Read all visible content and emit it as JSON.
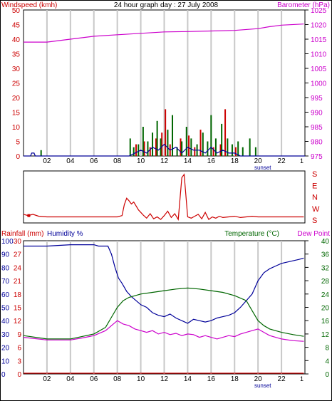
{
  "page": {
    "title": "24 hour graph day : 27 July 2008",
    "colors": {
      "red": "#cc0000",
      "green": "#006600",
      "magenta": "#cc00cc",
      "blue": "#000099",
      "grid": "#c8c8c8",
      "frame": "#000000"
    }
  },
  "chart_data": [
    {
      "id": "wind",
      "type": "bar",
      "title": "24 hour graph day : 27 July 2008",
      "ylabel_left": "Windspeed (kmh)",
      "ylabel_right": "Barometer (hPa)",
      "x_ticks": [
        "02",
        "04",
        "06",
        "08",
        "10",
        "12",
        "14",
        "16",
        "18",
        "20",
        "22"
      ],
      "sunset_label": "sunset",
      "ylim_left": [
        0,
        50
      ],
      "yticks_left": [
        "0",
        "5",
        "10",
        "15",
        "20",
        "25",
        "30",
        "35",
        "40",
        "45",
        "50"
      ],
      "ylim_right": [
        975,
        1025
      ],
      "yticks_right": [
        "975",
        "980",
        "985",
        "990",
        "995",
        "1000",
        "1005",
        "1010",
        "1015",
        "1020",
        "1025"
      ],
      "grid": true,
      "series": [
        {
          "kind": "line",
          "axis": "right",
          "color": "#cc00cc",
          "points": [
            [
              0,
              1014
            ],
            [
              2,
              1014
            ],
            [
              4,
              1015
            ],
            [
              6,
              1016
            ],
            [
              8,
              1016.5
            ],
            [
              10,
              1017
            ],
            [
              12,
              1017.5
            ],
            [
              14,
              1017.6
            ],
            [
              16,
              1017.8
            ],
            [
              18,
              1018
            ],
            [
              20,
              1018.6
            ],
            [
              21,
              1019.3
            ],
            [
              22,
              1019.8
            ],
            [
              23.9,
              1020.2
            ]
          ]
        },
        {
          "kind": "bars",
          "axis": "left",
          "color": "#cc0000",
          "points": [
            [
              9.6,
              4
            ],
            [
              10.3,
              5
            ],
            [
              10.8,
              3
            ],
            [
              11.3,
              6
            ],
            [
              11.8,
              8
            ],
            [
              12.1,
              16
            ],
            [
              12.5,
              4
            ],
            [
              13.4,
              6
            ],
            [
              14.1,
              7
            ],
            [
              14.6,
              3
            ],
            [
              15.1,
              9
            ],
            [
              16.2,
              3
            ],
            [
              16.8,
              4
            ],
            [
              17.2,
              16
            ],
            [
              18.1,
              3
            ]
          ]
        },
        {
          "kind": "bars",
          "axis": "left",
          "color": "#006600",
          "points": [
            [
              1.5,
              2
            ],
            [
              9.1,
              6
            ],
            [
              9.4,
              3
            ],
            [
              9.8,
              4
            ],
            [
              10.2,
              10
            ],
            [
              10.6,
              5
            ],
            [
              11.0,
              8
            ],
            [
              11.4,
              12
            ],
            [
              11.7,
              6
            ],
            [
              12.3,
              9
            ],
            [
              12.7,
              14
            ],
            [
              13.1,
              3
            ],
            [
              13.5,
              5
            ],
            [
              13.9,
              10
            ],
            [
              14.3,
              6
            ],
            [
              14.8,
              4
            ],
            [
              15.3,
              8
            ],
            [
              15.7,
              5
            ],
            [
              16.0,
              14
            ],
            [
              16.4,
              6
            ],
            [
              16.9,
              11
            ],
            [
              17.4,
              6
            ],
            [
              17.8,
              4
            ],
            [
              18.3,
              5
            ],
            [
              18.7,
              3
            ],
            [
              19.3,
              6
            ],
            [
              19.8,
              3
            ]
          ]
        },
        {
          "kind": "line",
          "axis": "left",
          "color": "#000099",
          "points": [
            [
              0,
              0
            ],
            [
              0.6,
              0
            ],
            [
              0.7,
              1
            ],
            [
              0.9,
              1
            ],
            [
              1.0,
              0
            ],
            [
              9.0,
              0
            ],
            [
              9.5,
              1
            ],
            [
              10.0,
              2
            ],
            [
              10.5,
              1
            ],
            [
              11.0,
              3
            ],
            [
              11.5,
              2
            ],
            [
              12.0,
              4
            ],
            [
              12.5,
              2
            ],
            [
              13.0,
              3
            ],
            [
              13.5,
              1
            ],
            [
              14.0,
              3
            ],
            [
              14.5,
              2
            ],
            [
              15.0,
              2
            ],
            [
              15.5,
              1
            ],
            [
              16.0,
              3
            ],
            [
              16.5,
              1
            ],
            [
              17.0,
              2
            ],
            [
              17.5,
              1
            ],
            [
              18.0,
              1
            ],
            [
              18.5,
              0
            ],
            [
              24,
              0
            ]
          ]
        }
      ]
    },
    {
      "id": "direction",
      "type": "line",
      "ylabels_right": [
        "S",
        "E",
        "N",
        "W",
        "S"
      ],
      "series": [
        {
          "color": "#cc0000",
          "points": [
            [
              0,
              225
            ],
            [
              0.4,
              215
            ],
            [
              0.8,
              225
            ],
            [
              1.3,
              210
            ],
            [
              2,
              205
            ],
            [
              3,
              205
            ],
            [
              5,
              205
            ],
            [
              7,
              205
            ],
            [
              8,
              205
            ],
            [
              8.4,
              215
            ],
            [
              8.6,
              300
            ],
            [
              8.8,
              350
            ],
            [
              9.0,
              330
            ],
            [
              9.2,
              305
            ],
            [
              9.4,
              320
            ],
            [
              9.6,
              290
            ],
            [
              9.8,
              260
            ],
            [
              10.0,
              240
            ],
            [
              10.2,
              220
            ],
            [
              10.5,
              195
            ],
            [
              10.8,
              230
            ],
            [
              11.1,
              190
            ],
            [
              11.4,
              205
            ],
            [
              11.7,
              185
            ],
            [
              12.0,
              215
            ],
            [
              12.3,
              250
            ],
            [
              12.6,
              200
            ],
            [
              12.9,
              230
            ],
            [
              13.2,
              185
            ],
            [
              13.5,
              150
            ],
            [
              13.7,
              175
            ],
            [
              14.0,
              205
            ],
            [
              14.3,
              195
            ],
            [
              14.6,
              210
            ],
            [
              14.9,
              225
            ],
            [
              15.2,
              190
            ],
            [
              15.5,
              240
            ],
            [
              15.8,
              185
            ],
            [
              16.1,
              205
            ],
            [
              16.4,
              195
            ],
            [
              16.7,
              210
            ],
            [
              17.0,
              200
            ],
            [
              17.5,
              205
            ],
            [
              18.0,
              210
            ],
            [
              18.5,
              200
            ],
            [
              19.0,
              205
            ],
            [
              19.5,
              210
            ],
            [
              20,
              205
            ],
            [
              22,
              205
            ],
            [
              23.9,
              205
            ]
          ]
        }
      ]
    },
    {
      "id": "temp",
      "type": "line",
      "ylabel_left_1": "Rainfall (mm)",
      "ylabel_left_2": "Humidity %",
      "ylabel_right_1": "Temperature (°C)",
      "ylabel_right_2": "Dew Point",
      "x_ticks": [
        "02",
        "04",
        "06",
        "08",
        "10",
        "12",
        "14",
        "16",
        "18",
        "20",
        "22"
      ],
      "sunset_label": "sunset",
      "yticks_humidity": [
        "0",
        "10",
        "20",
        "30",
        "40",
        "50",
        "60",
        "70",
        "80",
        "90",
        "100"
      ],
      "yticks_rain": [
        "0",
        "3",
        "6",
        "9",
        "12",
        "15",
        "18",
        "21",
        "24",
        "27",
        "30"
      ],
      "yticks_temp": [
        "0",
        "4",
        "8",
        "12",
        "16",
        "20",
        "24",
        "28",
        "32",
        "36",
        "40"
      ],
      "ylim_temp": [
        0,
        40
      ],
      "grid": true,
      "series": [
        {
          "name": "Humidity %",
          "axis": "humidity",
          "color": "#000099",
          "points": [
            [
              0,
              96
            ],
            [
              2,
              96
            ],
            [
              4,
              97
            ],
            [
              6,
              97
            ],
            [
              6.4,
              96
            ],
            [
              7.2,
              96
            ],
            [
              7.5,
              90
            ],
            [
              7.8,
              80
            ],
            [
              8.1,
              72
            ],
            [
              8.4,
              68
            ],
            [
              8.8,
              62
            ],
            [
              9.2,
              58
            ],
            [
              9.6,
              55
            ],
            [
              10,
              52
            ],
            [
              10.5,
              50
            ],
            [
              11,
              46
            ],
            [
              11.5,
              44
            ],
            [
              12,
              43
            ],
            [
              12.5,
              45
            ],
            [
              13,
              42
            ],
            [
              13.5,
              40
            ],
            [
              14,
              38
            ],
            [
              14.5,
              41
            ],
            [
              15,
              40
            ],
            [
              15.5,
              39
            ],
            [
              16,
              40
            ],
            [
              16.5,
              42
            ],
            [
              17,
              43
            ],
            [
              17.5,
              44
            ],
            [
              18,
              46
            ],
            [
              18.5,
              50
            ],
            [
              19,
              55
            ],
            [
              19.5,
              60
            ],
            [
              20,
              70
            ],
            [
              20.5,
              76
            ],
            [
              21,
              79
            ],
            [
              21.5,
              81
            ],
            [
              22,
              83
            ],
            [
              22.5,
              84
            ],
            [
              23,
              85
            ],
            [
              23.5,
              86
            ],
            [
              23.9,
              87
            ]
          ]
        },
        {
          "name": "Temperature (°C)",
          "axis": "temp",
          "color": "#006600",
          "points": [
            [
              0,
              11.5
            ],
            [
              2,
              10.5
            ],
            [
              4,
              10.5
            ],
            [
              6,
              12
            ],
            [
              7,
              14
            ],
            [
              7.5,
              17
            ],
            [
              8,
              20
            ],
            [
              8.5,
              22
            ],
            [
              9,
              23
            ],
            [
              10,
              24
            ],
            [
              11,
              24.5
            ],
            [
              12,
              25
            ],
            [
              13,
              25.5
            ],
            [
              14,
              25.8
            ],
            [
              15,
              25.5
            ],
            [
              16,
              25
            ],
            [
              17,
              24.5
            ],
            [
              18,
              23.5
            ],
            [
              19,
              22
            ],
            [
              19.5,
              19
            ],
            [
              20,
              16
            ],
            [
              20.5,
              14.5
            ],
            [
              21,
              13.5
            ],
            [
              22,
              12.5
            ],
            [
              23,
              11.8
            ],
            [
              23.9,
              11.3
            ]
          ]
        },
        {
          "name": "Dew Point",
          "axis": "temp",
          "color": "#cc00cc",
          "points": [
            [
              0,
              11
            ],
            [
              2,
              10.2
            ],
            [
              4,
              10.2
            ],
            [
              5,
              10.8
            ],
            [
              6,
              11.5
            ],
            [
              7,
              13
            ],
            [
              7.5,
              14.5
            ],
            [
              8,
              16
            ],
            [
              8.5,
              15
            ],
            [
              9,
              14.5
            ],
            [
              9.5,
              13.5
            ],
            [
              10,
              13
            ],
            [
              10.5,
              12.5
            ],
            [
              11,
              13
            ],
            [
              11.5,
              12
            ],
            [
              12,
              12.5
            ],
            [
              12.5,
              11.8
            ],
            [
              13,
              12.2
            ],
            [
              13.5,
              11.5
            ],
            [
              14,
              12
            ],
            [
              14.5,
              11.8
            ],
            [
              15,
              11
            ],
            [
              15.5,
              11.5
            ],
            [
              16,
              11
            ],
            [
              16.5,
              10.5
            ],
            [
              17,
              11
            ],
            [
              17.5,
              11.5
            ],
            [
              18,
              11.2
            ],
            [
              18.5,
              12
            ],
            [
              19,
              12.5
            ],
            [
              19.5,
              13
            ],
            [
              20,
              13.5
            ],
            [
              20.5,
              12.5
            ],
            [
              21,
              11.5
            ],
            [
              22,
              10.5
            ],
            [
              23,
              10
            ],
            [
              23.9,
              9.8
            ]
          ]
        },
        {
          "name": "Rainfall (mm)",
          "axis": "rain",
          "color": "#cc0000",
          "points": [
            [
              0,
              0
            ],
            [
              23.9,
              0
            ]
          ]
        }
      ]
    }
  ]
}
